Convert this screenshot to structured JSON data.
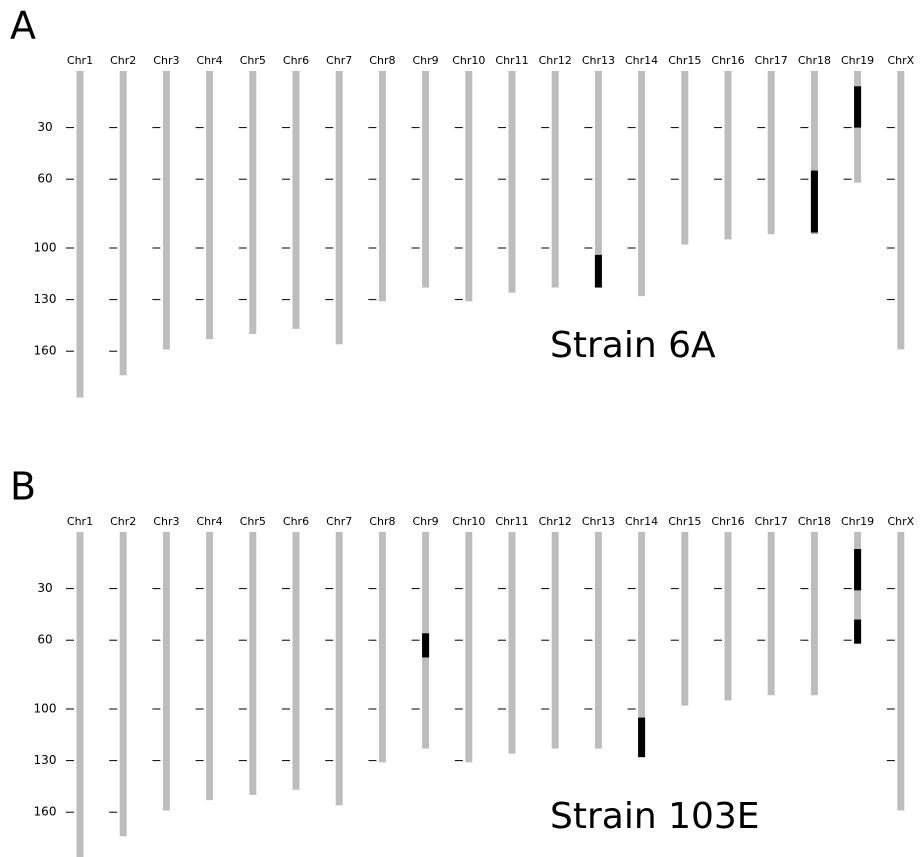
{
  "chart_data": [
    {
      "type": "ideogram",
      "panel_label": "A",
      "annotation": "Strain 6A",
      "categories": [
        "Chr1",
        "Chr2",
        "Chr3",
        "Chr4",
        "Chr5",
        "Chr6",
        "Chr7",
        "Chr8",
        "Chr9",
        "Chr10",
        "Chr11",
        "Chr12",
        "Chr13",
        "Chr14",
        "Chr15",
        "Chr16",
        "Chr17",
        "Chr18",
        "Chr19",
        "ChrX"
      ],
      "values": [
        187,
        174,
        159,
        153,
        150,
        147,
        156,
        131,
        123,
        131,
        126,
        123,
        123,
        128,
        98,
        95,
        92,
        92,
        62,
        159
      ],
      "highlights": [
        [],
        [],
        [],
        [],
        [],
        [],
        [],
        [],
        [],
        [],
        [],
        [],
        [
          [
            104,
            123
          ]
        ],
        [],
        [],
        [],
        [],
        [
          [
            55,
            91
          ]
        ],
        [
          [
            6,
            30
          ]
        ],
        []
      ],
      "color": "#bdbdbd",
      "highlight_color": "#000000",
      "ylim": [
        0,
        187
      ],
      "yticks": [
        30,
        60,
        100,
        130,
        160
      ]
    },
    {
      "type": "ideogram",
      "panel_label": "B",
      "annotation": "Strain 103E",
      "categories": [
        "Chr1",
        "Chr2",
        "Chr3",
        "Chr4",
        "Chr5",
        "Chr6",
        "Chr7",
        "Chr8",
        "Chr9",
        "Chr10",
        "Chr11",
        "Chr12",
        "Chr13",
        "Chr14",
        "Chr15",
        "Chr16",
        "Chr17",
        "Chr18",
        "Chr19",
        "ChrX"
      ],
      "values": [
        187,
        174,
        159,
        153,
        150,
        147,
        156,
        131,
        123,
        131,
        126,
        123,
        123,
        128,
        98,
        95,
        92,
        92,
        62,
        159
      ],
      "highlights": [
        [],
        [],
        [],
        [],
        [],
        [],
        [],
        [],
        [
          [
            56,
            70
          ]
        ],
        [],
        [],
        [],
        [],
        [
          [
            105,
            128
          ]
        ],
        [],
        [],
        [],
        [],
        [
          [
            7,
            31
          ],
          [
            48,
            62
          ]
        ],
        []
      ],
      "color": "#bdbdbd",
      "highlight_color": "#000000",
      "ylim": [
        0,
        187
      ],
      "yticks": [
        30,
        60,
        100,
        130,
        160
      ]
    }
  ]
}
